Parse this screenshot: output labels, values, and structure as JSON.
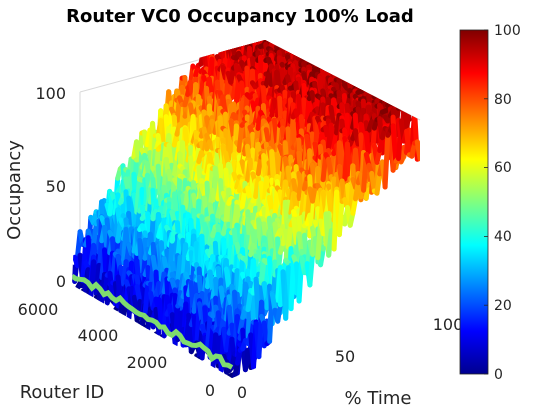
{
  "chart_data": {
    "type": "surface",
    "title": "Router VC0 Occupancy 100% Load",
    "xlabel": "% Time",
    "ylabel": "Router ID",
    "zlabel": "Occupancy",
    "x_ticks": [
      "0",
      "50",
      "100"
    ],
    "y_ticks": [
      "0",
      "2000",
      "4000",
      "6000"
    ],
    "z_ticks": [
      "0",
      "50",
      "100"
    ],
    "xlim": [
      0,
      100
    ],
    "ylim": [
      0,
      6000
    ],
    "zlim": [
      0,
      100
    ],
    "colormap": "jet",
    "colorbar": {
      "ticks": [
        "0",
        "20",
        "40",
        "60",
        "80",
        "100"
      ],
      "range": [
        0,
        100
      ],
      "location": "right"
    },
    "grid": true,
    "series": [
      {
        "x": 0,
        "approx_occupancy": 5
      },
      {
        "x": 10,
        "approx_occupancy": 20
      },
      {
        "x": 20,
        "approx_occupancy": 32
      },
      {
        "x": 30,
        "approx_occupancy": 45
      },
      {
        "x": 40,
        "approx_occupancy": 55
      },
      {
        "x": 50,
        "approx_occupancy": 65
      },
      {
        "x": 60,
        "approx_occupancy": 75
      },
      {
        "x": 70,
        "approx_occupancy": 83
      },
      {
        "x": 80,
        "approx_occupancy": 90
      },
      {
        "x": 90,
        "approx_occupancy": 95
      },
      {
        "x": 100,
        "approx_occupancy": 98
      }
    ]
  }
}
